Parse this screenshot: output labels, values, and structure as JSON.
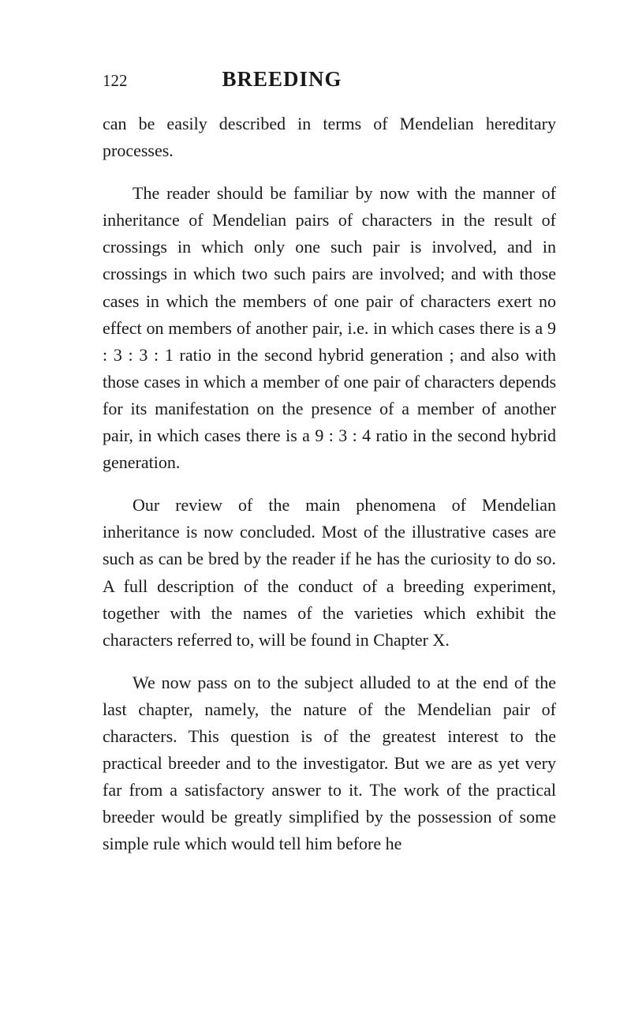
{
  "page": {
    "number": "122",
    "title": "BREEDING",
    "background_color": "#ffffff",
    "text_color": "#1a1a1a",
    "font_family": "Georgia, serif",
    "body_fontsize": 22,
    "title_fontsize": 27,
    "pagenum_fontsize": 21,
    "line_height": 1.55,
    "paragraphs": [
      {
        "text": "can be easily described in terms of Mendelian hereditary processes.",
        "indent": false
      },
      {
        "text": "The reader should be familiar by now with the manner of inheritance of Mendelian pairs of characters in the result of crossings in which only one such pair is involved, and in crossings in which two such pairs are involved; and with those cases in which the members of one pair of characters exert no effect on members of another pair, i.e. in which cases there is a 9 : 3 : 3 : 1 ratio in the second hybrid generation ; and also with those cases in which a member of one pair of characters depends for its manifestation on the presence of a member of another pair, in which cases there is a 9 : 3 : 4 ratio in the second hybrid generation.",
        "indent": true
      },
      {
        "text": "Our review of the main phenomena of Mendelian inheritance is now concluded. Most of the illustrative cases are such as can be bred by the reader if he has the curiosity to do so. A full description of the conduct of a breeding experiment, together with the names of the varieties which exhibit the characters referred to, will be found in Chapter X.",
        "indent": true
      },
      {
        "text": "We now pass on to the subject alluded to at the end of the last chapter, namely, the nature of the Mendelian pair of characters. This question is of the greatest interest to the practical breeder and to the investigator. But we are as yet very far from a satisfactory answer to it. The work of the practical breeder would be greatly simplified by the possession of some simple rule which would tell him before he",
        "indent": true
      }
    ]
  }
}
